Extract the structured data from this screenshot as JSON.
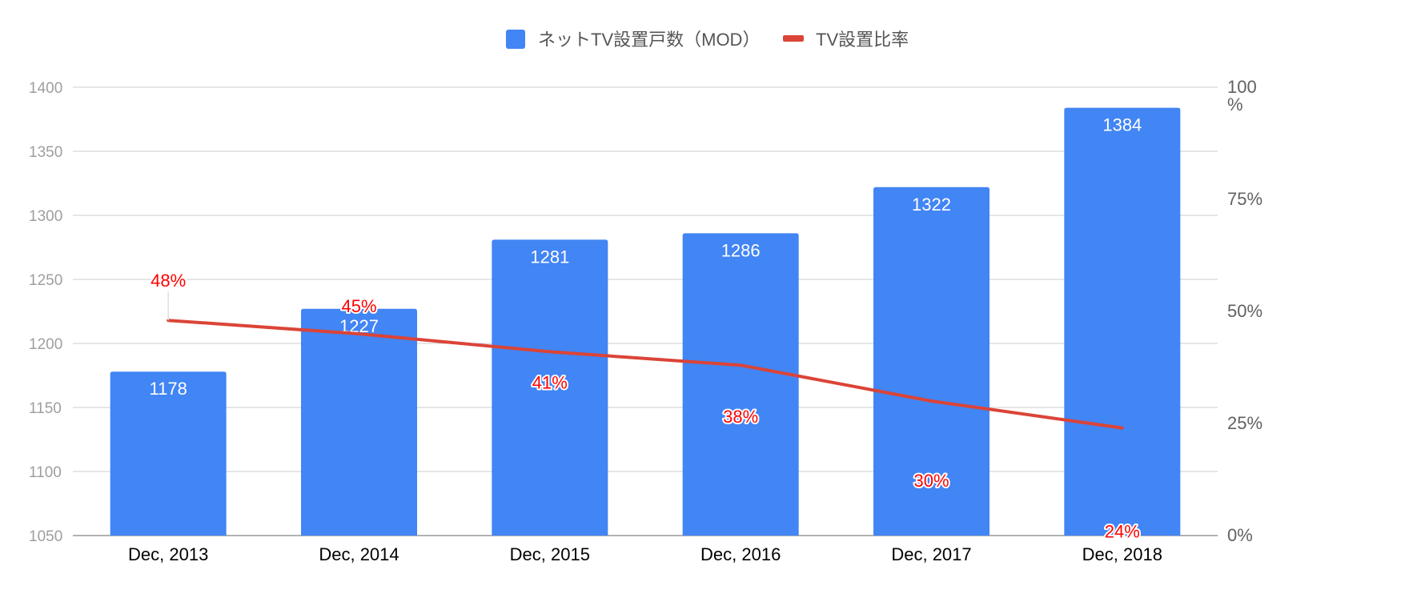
{
  "colors": {
    "bar": "#4285f4",
    "line": "#db4437",
    "grid": "#cccccc",
    "left_axis_text": "#9e9e9e",
    "right_axis_text": "#616161",
    "line_label": "#ff0000",
    "bar_label": "#ffffff",
    "x_label": "#000000",
    "legend_text": "#555555"
  },
  "chart_data": {
    "type": "bar",
    "categories": [
      "Dec, 2013",
      "Dec, 2014",
      "Dec, 2015",
      "Dec, 2016",
      "Dec, 2017",
      "Dec, 2018"
    ],
    "series": [
      {
        "name": "ネットTV設置戸数（MOD）",
        "type": "bar",
        "axis": "left",
        "values": [
          1178,
          1227,
          1281,
          1286,
          1322,
          1384
        ],
        "labels": [
          "1178",
          "1227",
          "1281",
          "1286",
          "1322",
          "1384"
        ]
      },
      {
        "name": "TV設置比率",
        "type": "line",
        "axis": "right",
        "values": [
          48,
          45,
          41,
          38,
          30,
          24
        ],
        "labels": [
          "48%",
          "45%",
          "41%",
          "38%",
          "30%",
          "24%"
        ]
      }
    ],
    "left_axis": {
      "min": 1050,
      "max": 1400,
      "ticks": [
        1050,
        1100,
        1150,
        1200,
        1250,
        1300,
        1350,
        1400
      ],
      "tick_labels": [
        "1050",
        "1100",
        "1150",
        "1200",
        "1250",
        "1300",
        "1350",
        "1400"
      ]
    },
    "right_axis": {
      "min": 0,
      "max": 100,
      "ticks": [
        0,
        25,
        50,
        75,
        100
      ],
      "tick_labels": [
        "0%",
        "25%",
        "50%",
        "75%",
        "100\n%"
      ]
    },
    "grid": true,
    "legend_position": "top-center"
  }
}
